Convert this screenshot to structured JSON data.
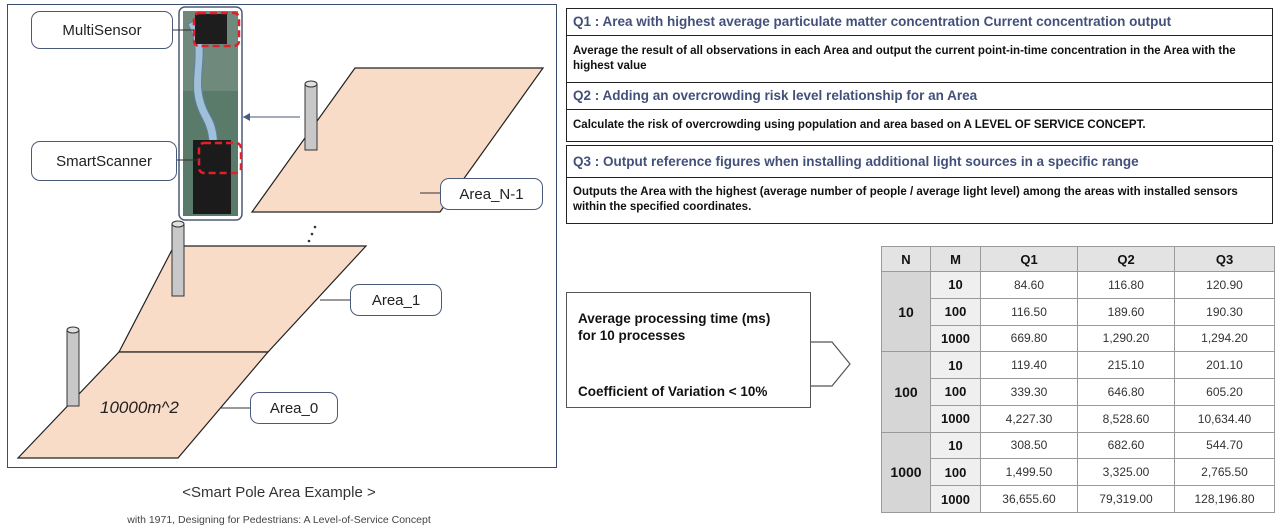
{
  "diagram": {
    "labels": {
      "multisensor": "MultiSensor",
      "smartscanner": "SmartScanner",
      "area_n1": "Area_N-1",
      "area_1": "Area_1",
      "area_0": "Area_0",
      "area_size": "10000m^2"
    },
    "title": "<Smart Pole Area Example >",
    "caption": "with 1971, Designing for Pedestrians: A Level-of-Service Concept"
  },
  "queries": [
    {
      "heading": "Q1 : Area with highest average particulate matter concentration Current concentration output",
      "body": "Average the result of all observations in each Area and output the current point-in-time concentration in the Area with the highest value"
    },
    {
      "heading": "Q2 : Adding an overcrowding risk level relationship for an Area",
      "body": "Calculate the risk of overcrowding using population and area based on A LEVEL OF SERVICE CONCEPT."
    },
    {
      "heading": "Q3 : Output reference figures when installing additional light sources in a specific range",
      "body": "Outputs the Area with the highest (average number of people / average light level) among the areas with installed sensors within the specified coordinates."
    }
  ],
  "processing": {
    "line1": "Average processing time (ms)",
    "line2": "for 10 processes",
    "cov": "Coefficient of Variation < 10%"
  },
  "table": {
    "headers": [
      "N",
      "M",
      "Q1",
      "Q2",
      "Q3"
    ],
    "groups": [
      {
        "n": "10",
        "rows": [
          {
            "m": "10",
            "q1": "84.60",
            "q2": "116.80",
            "q3": "120.90"
          },
          {
            "m": "100",
            "q1": "116.50",
            "q2": "189.60",
            "q3": "190.30"
          },
          {
            "m": "1000",
            "q1": "669.80",
            "q2": "1,290.20",
            "q3": "1,294.20"
          }
        ]
      },
      {
        "n": "100",
        "rows": [
          {
            "m": "10",
            "q1": "119.40",
            "q2": "215.10",
            "q3": "201.10"
          },
          {
            "m": "100",
            "q1": "339.30",
            "q2": "646.80",
            "q3": "605.20"
          },
          {
            "m": "1000",
            "q1": "4,227.30",
            "q2": "8,528.60",
            "q3": "10,634.40"
          }
        ]
      },
      {
        "n": "1000",
        "rows": [
          {
            "m": "10",
            "q1": "308.50",
            "q2": "682.60",
            "q3": "544.70"
          },
          {
            "m": "100",
            "q1": "1,499.50",
            "q2": "3,325.00",
            "q3": "2,765.50"
          },
          {
            "m": "1000",
            "q1": "36,655.60",
            "q2": "79,319.00",
            "q3": "128,196.80"
          }
        ]
      }
    ]
  },
  "colors": {
    "area_fill": "#f8dcc8",
    "heading_text": "#42507a",
    "dash_red": "#e0202a"
  }
}
